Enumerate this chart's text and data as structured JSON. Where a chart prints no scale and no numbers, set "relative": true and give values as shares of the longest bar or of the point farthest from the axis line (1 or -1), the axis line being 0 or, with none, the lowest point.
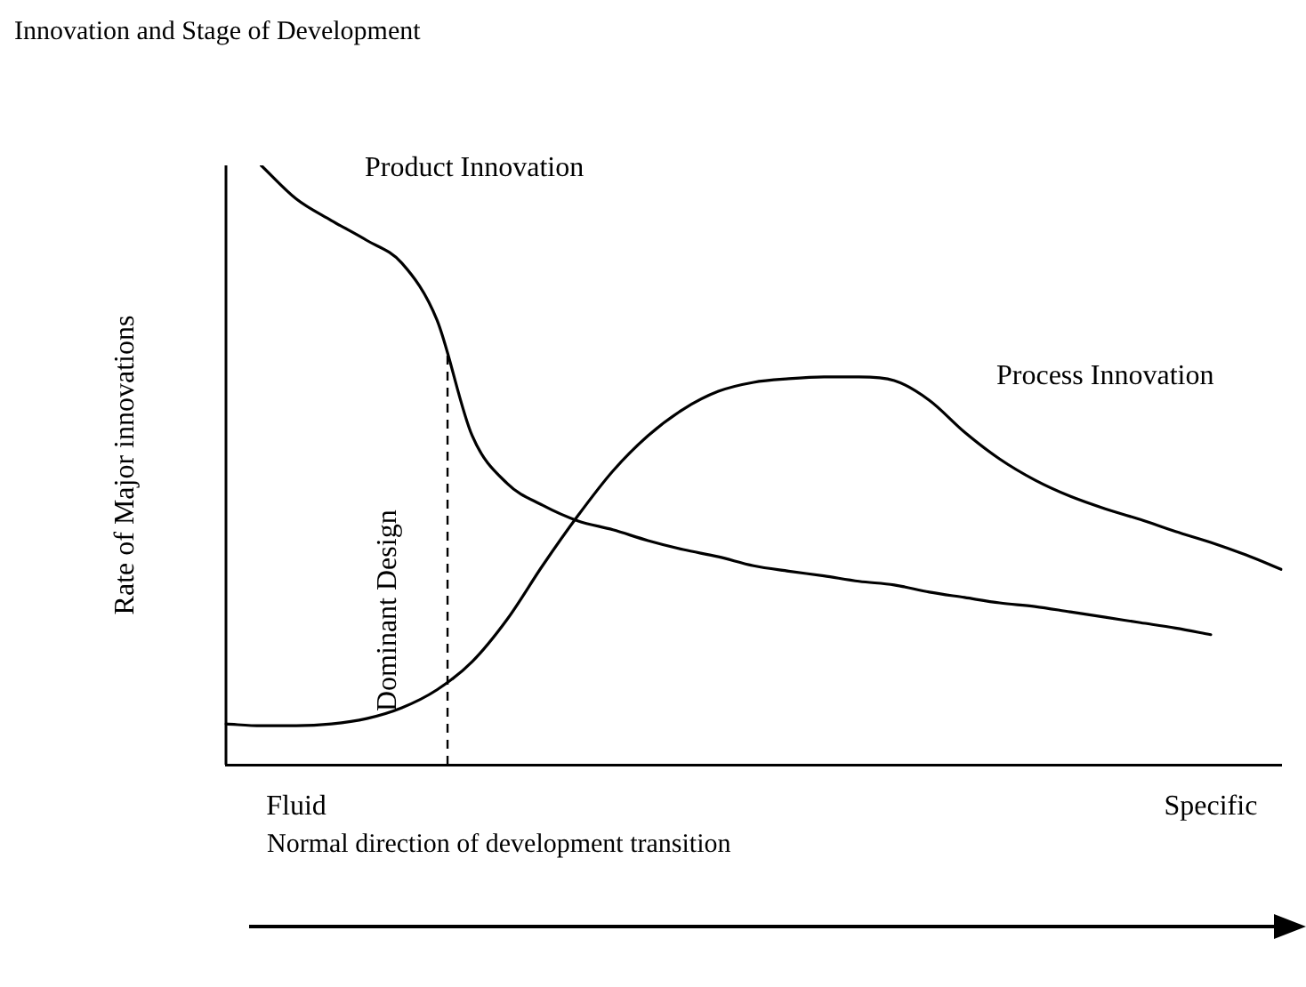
{
  "chart_data": {
    "type": "line",
    "title": "Innovation and Stage of Development",
    "xlabel": "Normal direction of development transition",
    "ylabel": "Rate of Major innovations",
    "relative": true,
    "grid": false,
    "legend": false,
    "marker": "none",
    "line_style": "solid",
    "categories": [
      null,
      null,
      "Fluid",
      null,
      null,
      null,
      null,
      null,
      null,
      null,
      null,
      null,
      null,
      null,
      null,
      null,
      null,
      null,
      null,
      null,
      null,
      null,
      null,
      null,
      null,
      null,
      null,
      null,
      "Specific",
      null,
      null
    ],
    "series": [
      {
        "name": "Product Innovation",
        "color": "#000000",
        "values": [
          null,
          1.0,
          0.944,
          0.908,
          0.875,
          0.837,
          0.742,
          0.549,
          0.469,
          0.433,
          0.407,
          0.392,
          0.374,
          0.359,
          0.347,
          0.332,
          0.323,
          0.315,
          0.306,
          0.3,
          0.288,
          0.279,
          0.27,
          0.264,
          0.255,
          0.246,
          0.237,
          0.228,
          0.217,
          null,
          null
        ]
      },
      {
        "name": "Process Innovation",
        "color": "#000000",
        "values": [
          0.068,
          0.065,
          0.065,
          0.068,
          0.077,
          0.095,
          0.125,
          0.172,
          0.243,
          0.332,
          0.415,
          0.49,
          0.549,
          0.593,
          0.623,
          0.638,
          0.644,
          0.647,
          0.647,
          0.641,
          0.608,
          0.555,
          0.51,
          0.475,
          0.448,
          0.427,
          0.409,
          0.389,
          0.371,
          0.35,
          0.326
        ]
      }
    ],
    "annotations": [
      "Dominant Design"
    ]
  }
}
